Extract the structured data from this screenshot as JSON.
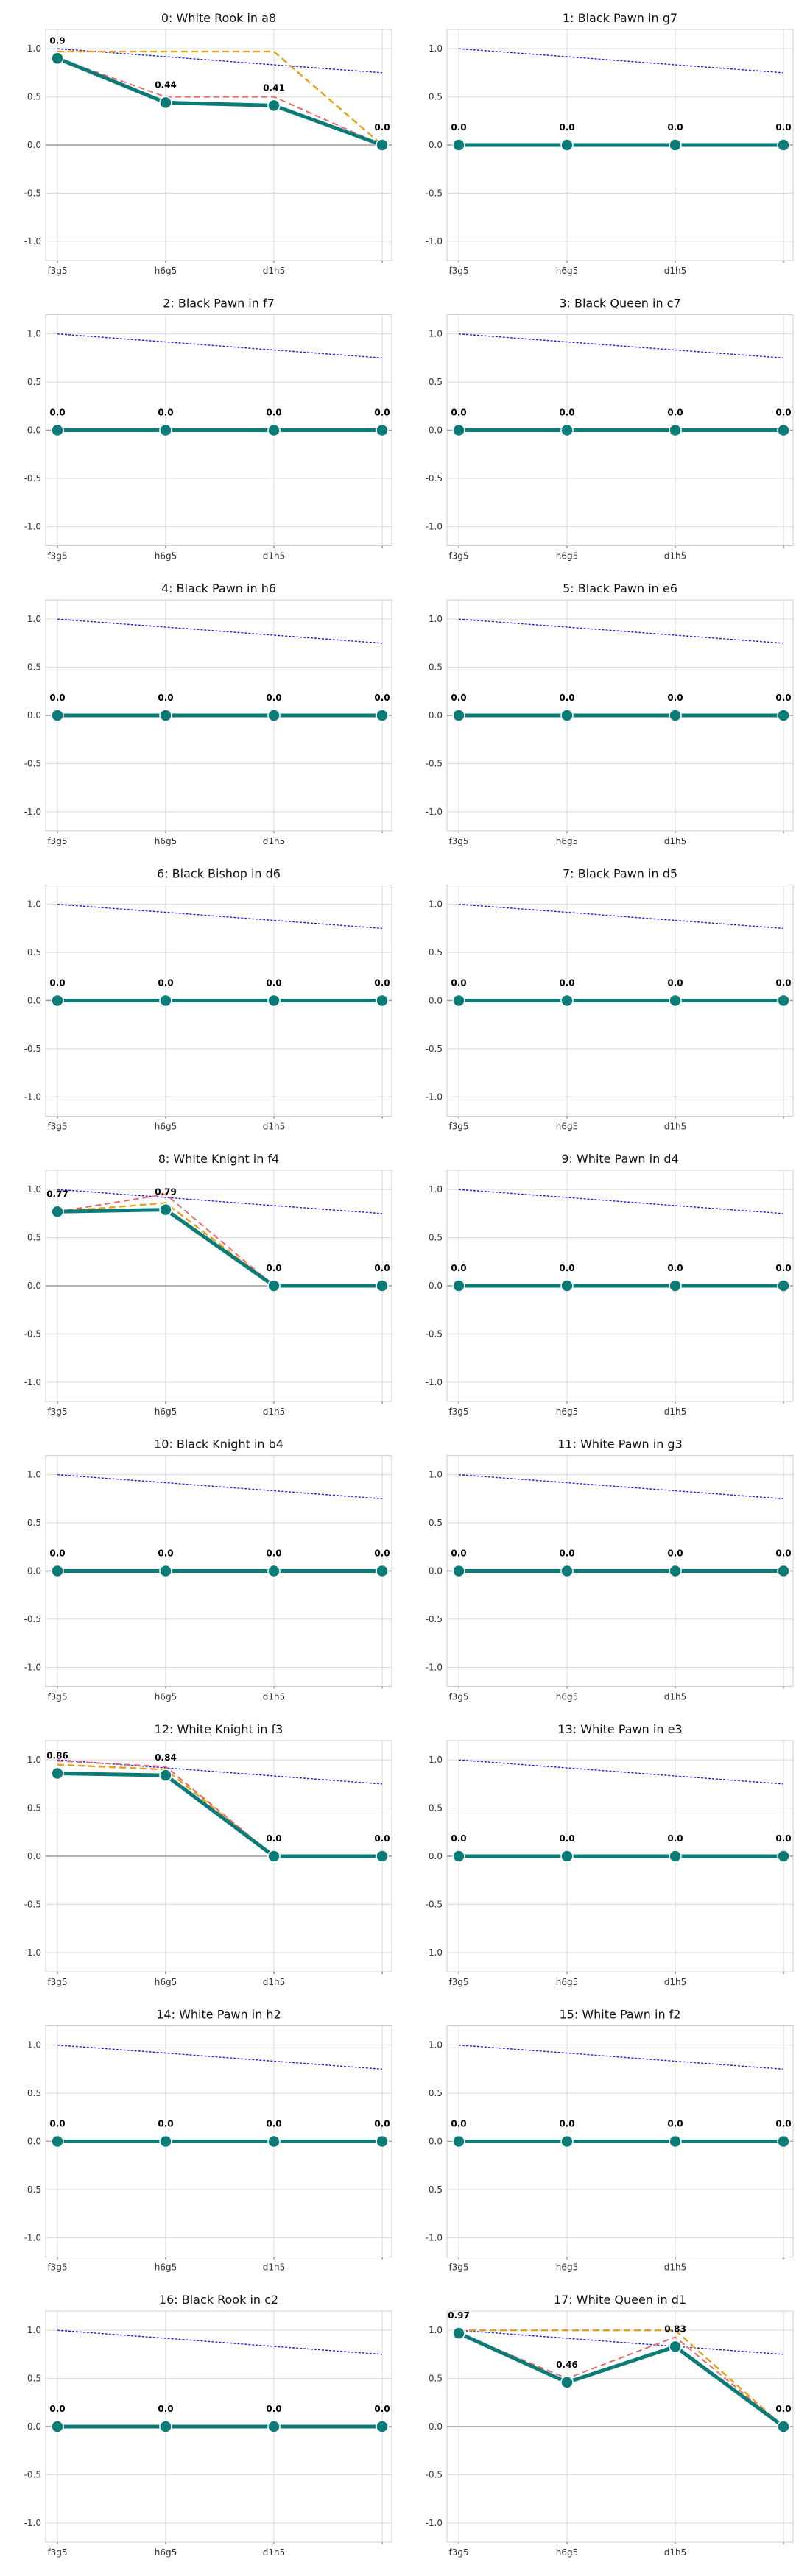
{
  "chart_data": {
    "type": "line",
    "categories": [
      "f3g5",
      "h6g5",
      "d1h5",
      ""
    ],
    "ylim": [
      -1.2,
      1.2
    ],
    "yticks": [
      -1.0,
      -0.5,
      0.0,
      0.5,
      1.0
    ],
    "ytick_labels": [
      "-1.0",
      "-0.5",
      "0.0",
      "0.5",
      "1.0"
    ],
    "grid": true,
    "colors": {
      "main": "#0b7b77",
      "red_dashed": "#e86a6a",
      "orange_dashed": "#e3a21a",
      "blue_dotted": "#1f1fe0",
      "zero_line": "#9a9a9a"
    },
    "reference_line": [
      1.0,
      0.917,
      0.833,
      0.75
    ],
    "panels": [
      {
        "title": "0: White Rook in a8",
        "values": [
          0.9,
          0.44,
          0.41,
          0.0
        ],
        "labels": [
          "0.9",
          "0.44",
          "0.41",
          "0.0"
        ],
        "red": [
          0.9,
          0.5,
          0.5,
          0.0
        ],
        "orange": [
          0.97,
          0.97,
          0.97,
          0.0
        ]
      },
      {
        "title": "1: Black Pawn in g7",
        "values": [
          0.0,
          0.0,
          0.0,
          0.0
        ],
        "labels": [
          "0.0",
          "0.0",
          "0.0",
          "0.0"
        ]
      },
      {
        "title": "2: Black Pawn in f7",
        "values": [
          0.0,
          0.0,
          0.0,
          0.0
        ],
        "labels": [
          "0.0",
          "0.0",
          "0.0",
          "0.0"
        ]
      },
      {
        "title": "3: Black Queen in c7",
        "values": [
          0.0,
          0.0,
          0.0,
          0.0
        ],
        "labels": [
          "0.0",
          "0.0",
          "0.0",
          "0.0"
        ]
      },
      {
        "title": "4: Black Pawn in h6",
        "values": [
          0.0,
          0.0,
          0.0,
          0.0
        ],
        "labels": [
          "0.0",
          "0.0",
          "0.0",
          "0.0"
        ]
      },
      {
        "title": "5: Black Pawn in e6",
        "values": [
          0.0,
          0.0,
          0.0,
          0.0
        ],
        "labels": [
          "0.0",
          "0.0",
          "0.0",
          "0.0"
        ]
      },
      {
        "title": "6: Black Bishop in d6",
        "values": [
          0.0,
          0.0,
          0.0,
          0.0
        ],
        "labels": [
          "0.0",
          "0.0",
          "0.0",
          "0.0"
        ]
      },
      {
        "title": "7: Black Pawn in d5",
        "values": [
          0.0,
          0.0,
          0.0,
          0.0
        ],
        "labels": [
          "0.0",
          "0.0",
          "0.0",
          "0.0"
        ]
      },
      {
        "title": "8: White Knight in f4",
        "values": [
          0.77,
          0.79,
          0.0,
          0.0
        ],
        "labels": [
          "0.77",
          "0.79",
          "0.0",
          "0.0"
        ],
        "red": [
          0.77,
          0.95,
          0.0,
          0.0
        ],
        "orange": [
          0.77,
          0.86,
          0.0,
          0.0
        ]
      },
      {
        "title": "9: White Pawn in d4",
        "values": [
          0.0,
          0.0,
          0.0,
          0.0
        ],
        "labels": [
          "0.0",
          "0.0",
          "0.0",
          "0.0"
        ]
      },
      {
        "title": "10: Black Knight in b4",
        "values": [
          0.0,
          0.0,
          0.0,
          0.0
        ],
        "labels": [
          "0.0",
          "0.0",
          "0.0",
          "0.0"
        ]
      },
      {
        "title": "11: White Pawn in g3",
        "values": [
          0.0,
          0.0,
          0.0,
          0.0
        ],
        "labels": [
          "0.0",
          "0.0",
          "0.0",
          "0.0"
        ]
      },
      {
        "title": "12: White Knight in f3",
        "values": [
          0.86,
          0.84,
          0.0,
          0.0
        ],
        "labels": [
          "0.86",
          "0.84",
          "0.0",
          "0.0"
        ],
        "red": [
          0.99,
          0.93,
          0.0,
          0.0
        ],
        "orange": [
          0.95,
          0.9,
          0.0,
          0.0
        ]
      },
      {
        "title": "13: White Pawn in e3",
        "values": [
          0.0,
          0.0,
          0.0,
          0.0
        ],
        "labels": [
          "0.0",
          "0.0",
          "0.0",
          "0.0"
        ]
      },
      {
        "title": "14: White Pawn in h2",
        "values": [
          0.0,
          0.0,
          0.0,
          0.0
        ],
        "labels": [
          "0.0",
          "0.0",
          "0.0",
          "0.0"
        ]
      },
      {
        "title": "15: White Pawn in f2",
        "values": [
          0.0,
          0.0,
          0.0,
          0.0
        ],
        "labels": [
          "0.0",
          "0.0",
          "0.0",
          "0.0"
        ]
      },
      {
        "title": "16: Black Rook in c2",
        "values": [
          0.0,
          0.0,
          0.0,
          0.0
        ],
        "labels": [
          "0.0",
          "0.0",
          "0.0",
          "0.0"
        ]
      },
      {
        "title": "17: White Queen in d1",
        "values": [
          0.97,
          0.46,
          0.83,
          0.0
        ],
        "labels": [
          "0.97",
          "0.46",
          "0.83",
          "0.0"
        ],
        "red": [
          0.97,
          0.5,
          0.93,
          0.0
        ],
        "orange": [
          1.0,
          1.0,
          1.0,
          0.0
        ]
      }
    ]
  }
}
